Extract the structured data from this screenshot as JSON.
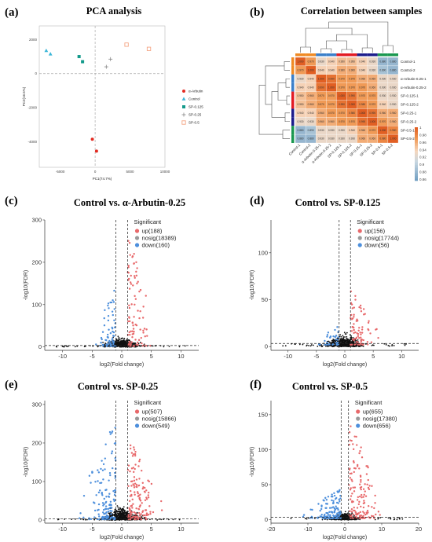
{
  "panel_labels": [
    "(a)",
    "(b)",
    "(c)",
    "(d)",
    "(e)",
    "(f)"
  ],
  "colors": {
    "up": "#e8696b",
    "nosig": "#111111",
    "down": "#4d8fdc",
    "arbutin": "#e32b22",
    "control": "#3cb6d8",
    "sp0125": "#139a8b",
    "sp025": "#23565c",
    "sp05": "#f4a482"
  },
  "chart_data": [
    {
      "type": "scatter",
      "panel": "(a)",
      "title": "PCA analysis",
      "xlabel": "PC1(74.7%)",
      "ylabel": "PC2(16.5%)",
      "xlim": [
        -8000,
        10000
      ],
      "ylim": [
        -5500,
        2800
      ],
      "xticks": [
        -5000,
        0,
        5000,
        10000
      ],
      "yticks": [
        -4000,
        -2000,
        0,
        2000
      ],
      "x_tick_labels": [
        "-5000",
        "0",
        "5000",
        "10000"
      ],
      "y_tick_labels": [
        "-4000",
        "-2000",
        "0",
        "2000"
      ],
      "legend_position": "right",
      "series": [
        {
          "name": "α-Arbutin",
          "marker": "circle",
          "color": "#e32b22",
          "points": [
            [
              -400,
              -3850
            ],
            [
              200,
              -4550
            ]
          ]
        },
        {
          "name": "Control",
          "marker": "triangle",
          "color": "#3cb6d8",
          "points": [
            [
              -7000,
              1350
            ],
            [
              -6400,
              1150
            ]
          ]
        },
        {
          "name": "SP-0.125",
          "marker": "square",
          "color": "#139a8b",
          "points": [
            [
              -2300,
              1000
            ],
            [
              -1800,
              700
            ]
          ]
        },
        {
          "name": "SP-0.25",
          "marker": "plus",
          "color": "#888888",
          "points": [
            [
              2200,
              850
            ],
            [
              1600,
              400
            ]
          ]
        },
        {
          "name": "SP-0.5",
          "marker": "square-open",
          "color": "#f4a482",
          "points": [
            [
              4500,
              1700
            ],
            [
              7700,
              1450
            ]
          ]
        }
      ]
    },
    {
      "type": "heatmap",
      "panel": "(b)",
      "title": "Correlation between samples",
      "rows": [
        "Control-1",
        "Control-2",
        "α-Arbutin-0.25-1",
        "α-Arbutin-0.25-2",
        "SP-0.125-1",
        "SP-0.125-2",
        "SP-0.25-1",
        "SP-0.25-2",
        "SP-0.5-1",
        "SP-0.5-2"
      ],
      "columns": [
        "Control-1",
        "Control-2",
        "α-Arbutin-0.25-1",
        "α-Arbutin-0.25-2",
        "SP-0.125-1",
        "SP-0.125-2",
        "SP-0.25-1",
        "SP-0.25-2",
        "SP-0.5-1",
        "SP-0.5-2"
      ],
      "colorbar_ticks": [
        "1",
        "0.98",
        "0.96",
        "0.94",
        "0.92",
        "0.9",
        "0.88",
        "0.86"
      ],
      "colorbar_range": [
        0.86,
        1
      ],
      "values": [
        [
          1,
          0.97,
          0.93,
          0.94,
          0.95,
          0.95,
          0.94,
          0.93,
          0.88,
          0.88
        ],
        [
          0.97,
          1,
          0.94,
          0.94,
          0.96,
          0.96,
          0.94,
          0.93,
          0.89,
          0.88
        ],
        [
          0.93,
          0.94,
          1,
          0.99,
          0.97,
          0.97,
          0.96,
          0.96,
          0.93,
          0.93
        ],
        [
          0.94,
          0.94,
          0.99,
          1,
          0.97,
          0.97,
          0.97,
          0.96,
          0.93,
          0.93
        ],
        [
          0.95,
          0.96,
          0.97,
          0.97,
          1,
          0.99,
          0.97,
          0.97,
          0.93,
          0.93
        ],
        [
          0.95,
          0.96,
          0.97,
          0.97,
          0.99,
          1,
          0.98,
          0.97,
          0.94,
          0.93
        ],
        [
          0.94,
          0.94,
          0.96,
          0.97,
          0.97,
          0.98,
          1,
          0.99,
          0.96,
          0.96
        ],
        [
          0.93,
          0.93,
          0.96,
          0.96,
          0.97,
          0.97,
          0.99,
          1,
          0.97,
          0.96
        ],
        [
          0.88,
          0.89,
          0.93,
          0.93,
          0.93,
          0.94,
          0.96,
          0.97,
          1,
          0.98
        ],
        [
          0.88,
          0.88,
          0.93,
          0.93,
          0.93,
          0.93,
          0.96,
          0.96,
          0.98,
          1
        ]
      ],
      "group_colors": [
        "#f08a24",
        "#f08a24",
        "#3b7fc9",
        "#3b7fc9",
        "#e31b23",
        "#e31b23",
        "#1d1d8c",
        "#1d1d8c",
        "#1a9850",
        "#1a9850"
      ]
    },
    {
      "type": "scatter",
      "subtype": "volcano",
      "panel": "(c)",
      "title": "Control vs. α-Arbutin-0.25",
      "xlabel": "log2(Fold change)",
      "ylabel": "-log10(FDR)",
      "xlim": [
        -13,
        13
      ],
      "ylim": [
        -8,
        300
      ],
      "xticks": [
        -10,
        -5,
        0,
        5,
        10
      ],
      "yticks": [
        0,
        100,
        200,
        300
      ],
      "x_tick_labels": [
        "-10",
        "-5",
        "0",
        "5",
        "10"
      ],
      "y_tick_labels": [
        "0",
        "100",
        "200",
        "300"
      ],
      "fc_threshold": 1,
      "legend_title": "Significant",
      "legend_position": "top-right",
      "counts": {
        "up": 188,
        "nosig": 18389,
        "down": 160
      },
      "legend_entries": [
        "up(188)",
        "nosig(18389)",
        "down(160)"
      ],
      "up_spread_x": 3.5,
      "down_spread_x": 3.5,
      "up_max_y": 270,
      "down_max_y": 140,
      "nosig_max_y": 25
    },
    {
      "type": "scatter",
      "subtype": "volcano",
      "panel": "(d)",
      "title": "Control vs. SP-0.125",
      "xlabel": "log2(Fold change)",
      "ylabel": "-log10(FDR)",
      "xlim": [
        -13,
        13
      ],
      "ylim": [
        -4,
        135
      ],
      "xticks": [
        -10,
        -5,
        0,
        5,
        10
      ],
      "yticks": [
        0,
        50,
        100
      ],
      "x_tick_labels": [
        "-10",
        "-5",
        "0",
        "5",
        "10"
      ],
      "y_tick_labels": [
        "0",
        "50",
        "100"
      ],
      "fc_threshold": 1,
      "legend_title": "Significant",
      "legend_position": "top-right",
      "counts": {
        "up": 156,
        "nosig": 17744,
        "down": 56
      },
      "legend_entries": [
        "up(156)",
        "nosig(17744)",
        "down(56)"
      ],
      "up_spread_x": 4,
      "down_spread_x": 3,
      "up_max_y": 60,
      "down_max_y": 22,
      "nosig_max_y": 15
    },
    {
      "type": "scatter",
      "subtype": "volcano",
      "panel": "(e)",
      "title": "Control vs. SP-0.25",
      "xlabel": "log2(Fold change)",
      "ylabel": "-log10(FDR)",
      "xlim": [
        -13,
        13
      ],
      "ylim": [
        -8,
        310
      ],
      "xticks": [
        -10,
        -5,
        0,
        5,
        10
      ],
      "yticks": [
        0,
        100,
        200,
        300
      ],
      "x_tick_labels": [
        "-10",
        "-5",
        "0",
        "5",
        "10"
      ],
      "y_tick_labels": [
        "0",
        "100",
        "200",
        "300"
      ],
      "fc_threshold": 1,
      "legend_title": "Significant",
      "legend_position": "top-right",
      "counts": {
        "up": 507,
        "nosig": 15866,
        "down": 549
      },
      "legend_entries": [
        "up(507)",
        "nosig(15866)",
        "down(549)"
      ],
      "up_spread_x": 5,
      "down_spread_x": 5,
      "up_max_y": 215,
      "down_max_y": 260,
      "nosig_max_y": 40
    },
    {
      "type": "scatter",
      "subtype": "volcano",
      "panel": "(f)",
      "title": "Control vs. SP-0.5",
      "xlabel": "log2(Fold change)",
      "ylabel": "-log10(FDR)",
      "xlim": [
        -20,
        20
      ],
      "ylim": [
        -5,
        170
      ],
      "xticks": [
        -20,
        -10,
        0,
        10,
        20
      ],
      "yticks": [
        0,
        50,
        100,
        150
      ],
      "x_tick_labels": [
        "-20",
        "-10",
        "0",
        "10",
        "20"
      ],
      "y_tick_labels": [
        "0",
        "50",
        "100",
        "150"
      ],
      "fc_threshold": 1,
      "legend_title": "Significant",
      "legend_position": "top-right",
      "counts": {
        "up": 655,
        "nosig": 17380,
        "down": 656
      },
      "legend_entries": [
        "up(655)",
        "nosig(17380)",
        "down(656)"
      ],
      "up_spread_x": 8,
      "down_spread_x": 8,
      "up_max_y": 140,
      "down_max_y": 45,
      "nosig_max_y": 12
    }
  ]
}
